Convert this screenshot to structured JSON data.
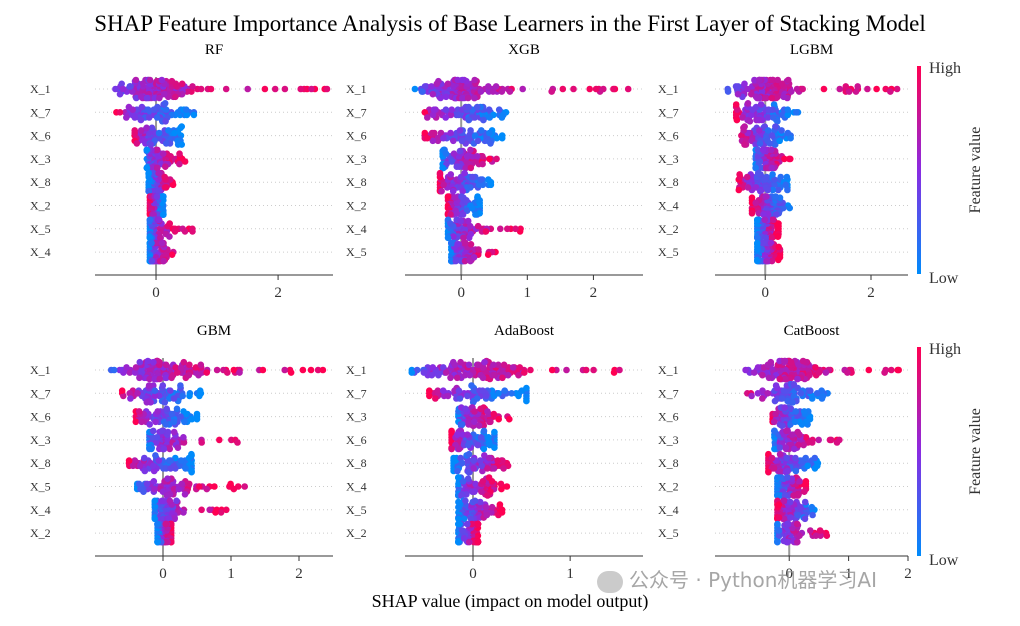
{
  "title": "SHAP Feature Importance Analysis of Base Learners in the First Layer of Stacking Model",
  "xlabel": "SHAP value (impact on model output)",
  "watermark": "公众号 · Python机器学习AI",
  "colorbar": {
    "label": "Feature value",
    "high": "High",
    "low": "Low",
    "colors": [
      "#008bfb",
      "#8a2be2",
      "#ff0052"
    ]
  },
  "chart_data": [
    {
      "type": "scatter",
      "title": "RF",
      "xlim": [
        -1.0,
        2.9
      ],
      "ticks": [
        0,
        2
      ],
      "features": [
        {
          "name": "X_1",
          "min": -0.72,
          "max": 2.82,
          "skew": 2.2
        },
        {
          "name": "X_7",
          "min": -0.65,
          "max": 0.62,
          "skew": -1.0
        },
        {
          "name": "X_6",
          "min": -0.35,
          "max": 0.42,
          "skew": -1.0
        },
        {
          "name": "X_3",
          "min": -0.15,
          "max": 0.58,
          "skew": 1.6
        },
        {
          "name": "X_8",
          "min": -0.12,
          "max": 0.28,
          "skew": 0.3
        },
        {
          "name": "X_2",
          "min": -0.1,
          "max": 0.12,
          "skew": -0.4
        },
        {
          "name": "X_5",
          "min": -0.1,
          "max": 0.6,
          "skew": 1.8
        },
        {
          "name": "X_4",
          "min": -0.1,
          "max": 0.38,
          "skew": 1.4
        }
      ]
    },
    {
      "type": "scatter",
      "title": "XGB",
      "xlim": [
        -0.85,
        2.75
      ],
      "ticks": [
        0,
        1,
        2
      ],
      "features": [
        {
          "name": "X_1",
          "min": -0.7,
          "max": 2.55,
          "skew": 2.2
        },
        {
          "name": "X_7",
          "min": -0.55,
          "max": 0.78,
          "skew": -1.0
        },
        {
          "name": "X_6",
          "min": -0.55,
          "max": 0.62,
          "skew": -1.0
        },
        {
          "name": "X_3",
          "min": -0.28,
          "max": 0.75,
          "skew": 1.4
        },
        {
          "name": "X_8",
          "min": -0.32,
          "max": 0.45,
          "skew": -0.8
        },
        {
          "name": "X_2",
          "min": -0.2,
          "max": 0.28,
          "skew": -0.6
        },
        {
          "name": "X_4",
          "min": -0.2,
          "max": 0.9,
          "skew": 1.6
        },
        {
          "name": "X_5",
          "min": -0.15,
          "max": 0.58,
          "skew": 1.4
        }
      ]
    },
    {
      "type": "scatter",
      "title": "LGBM",
      "xlim": [
        -0.95,
        2.7
      ],
      "ticks": [
        0,
        2
      ],
      "features": [
        {
          "name": "X_1",
          "min": -0.85,
          "max": 2.5,
          "skew": 2.2
        },
        {
          "name": "X_7",
          "min": -0.55,
          "max": 0.62,
          "skew": -1.0
        },
        {
          "name": "X_6",
          "min": -0.45,
          "max": 0.48,
          "skew": -1.0
        },
        {
          "name": "X_3",
          "min": -0.18,
          "max": 0.5,
          "skew": 1.4
        },
        {
          "name": "X_8",
          "min": -0.5,
          "max": 0.42,
          "skew": -0.8
        },
        {
          "name": "X_4",
          "min": -0.25,
          "max": 0.5,
          "skew": -0.6
        },
        {
          "name": "X_2",
          "min": -0.15,
          "max": 0.25,
          "skew": 0.3
        },
        {
          "name": "X_5",
          "min": -0.15,
          "max": 0.28,
          "skew": 0.3
        }
      ]
    },
    {
      "type": "scatter",
      "title": "GBM",
      "xlim": [
        -1.0,
        2.5
      ],
      "ticks": [
        0,
        1,
        2
      ],
      "features": [
        {
          "name": "X_1",
          "min": -0.78,
          "max": 2.45,
          "skew": 2.2
        },
        {
          "name": "X_7",
          "min": -0.6,
          "max": 0.62,
          "skew": -1.0
        },
        {
          "name": "X_6",
          "min": -0.4,
          "max": 0.5,
          "skew": -1.0
        },
        {
          "name": "X_3",
          "min": -0.2,
          "max": 1.1,
          "skew": 1.6
        },
        {
          "name": "X_8",
          "min": -0.5,
          "max": 0.42,
          "skew": -0.8
        },
        {
          "name": "X_5",
          "min": -0.38,
          "max": 1.22,
          "skew": 1.6
        },
        {
          "name": "X_4",
          "min": -0.12,
          "max": 1.15,
          "skew": 1.4
        },
        {
          "name": "X_2",
          "min": -0.08,
          "max": 0.12,
          "skew": 0.3
        }
      ]
    },
    {
      "type": "scatter",
      "title": "AdaBoost",
      "xlim": [
        -0.7,
        1.75
      ],
      "ticks": [
        0,
        1
      ],
      "features": [
        {
          "name": "X_1",
          "min": -0.63,
          "max": 1.68,
          "skew": 2.2
        },
        {
          "name": "X_7",
          "min": -0.45,
          "max": 0.55,
          "skew": -1.0
        },
        {
          "name": "X_3",
          "min": -0.15,
          "max": 0.38,
          "skew": 1.6
        },
        {
          "name": "X_6",
          "min": -0.22,
          "max": 0.22,
          "skew": -1.0
        },
        {
          "name": "X_8",
          "min": -0.2,
          "max": 0.45,
          "skew": 0.3
        },
        {
          "name": "X_4",
          "min": -0.15,
          "max": 0.38,
          "skew": 1.4
        },
        {
          "name": "X_5",
          "min": -0.15,
          "max": 0.3,
          "skew": 0.3
        },
        {
          "name": "X_2",
          "min": -0.15,
          "max": 0.05,
          "skew": 0.3
        }
      ]
    },
    {
      "type": "scatter",
      "title": "CatBoost",
      "xlim": [
        -1.25,
        2.0
      ],
      "ticks": [
        0,
        1,
        2
      ],
      "features": [
        {
          "name": "X_1",
          "min": -0.85,
          "max": 1.85,
          "skew": 2.2
        },
        {
          "name": "X_7",
          "min": -0.75,
          "max": 0.7,
          "skew": -1.0
        },
        {
          "name": "X_6",
          "min": -0.28,
          "max": 0.35,
          "skew": -1.0
        },
        {
          "name": "X_3",
          "min": -0.25,
          "max": 0.85,
          "skew": 1.6
        },
        {
          "name": "X_8",
          "min": -0.35,
          "max": 0.5,
          "skew": -0.8
        },
        {
          "name": "X_2",
          "min": -0.2,
          "max": 0.28,
          "skew": 0.3
        },
        {
          "name": "X_4",
          "min": -0.2,
          "max": 0.5,
          "skew": -0.6
        },
        {
          "name": "X_5",
          "min": -0.2,
          "max": 0.68,
          "skew": 1.4
        }
      ]
    }
  ]
}
